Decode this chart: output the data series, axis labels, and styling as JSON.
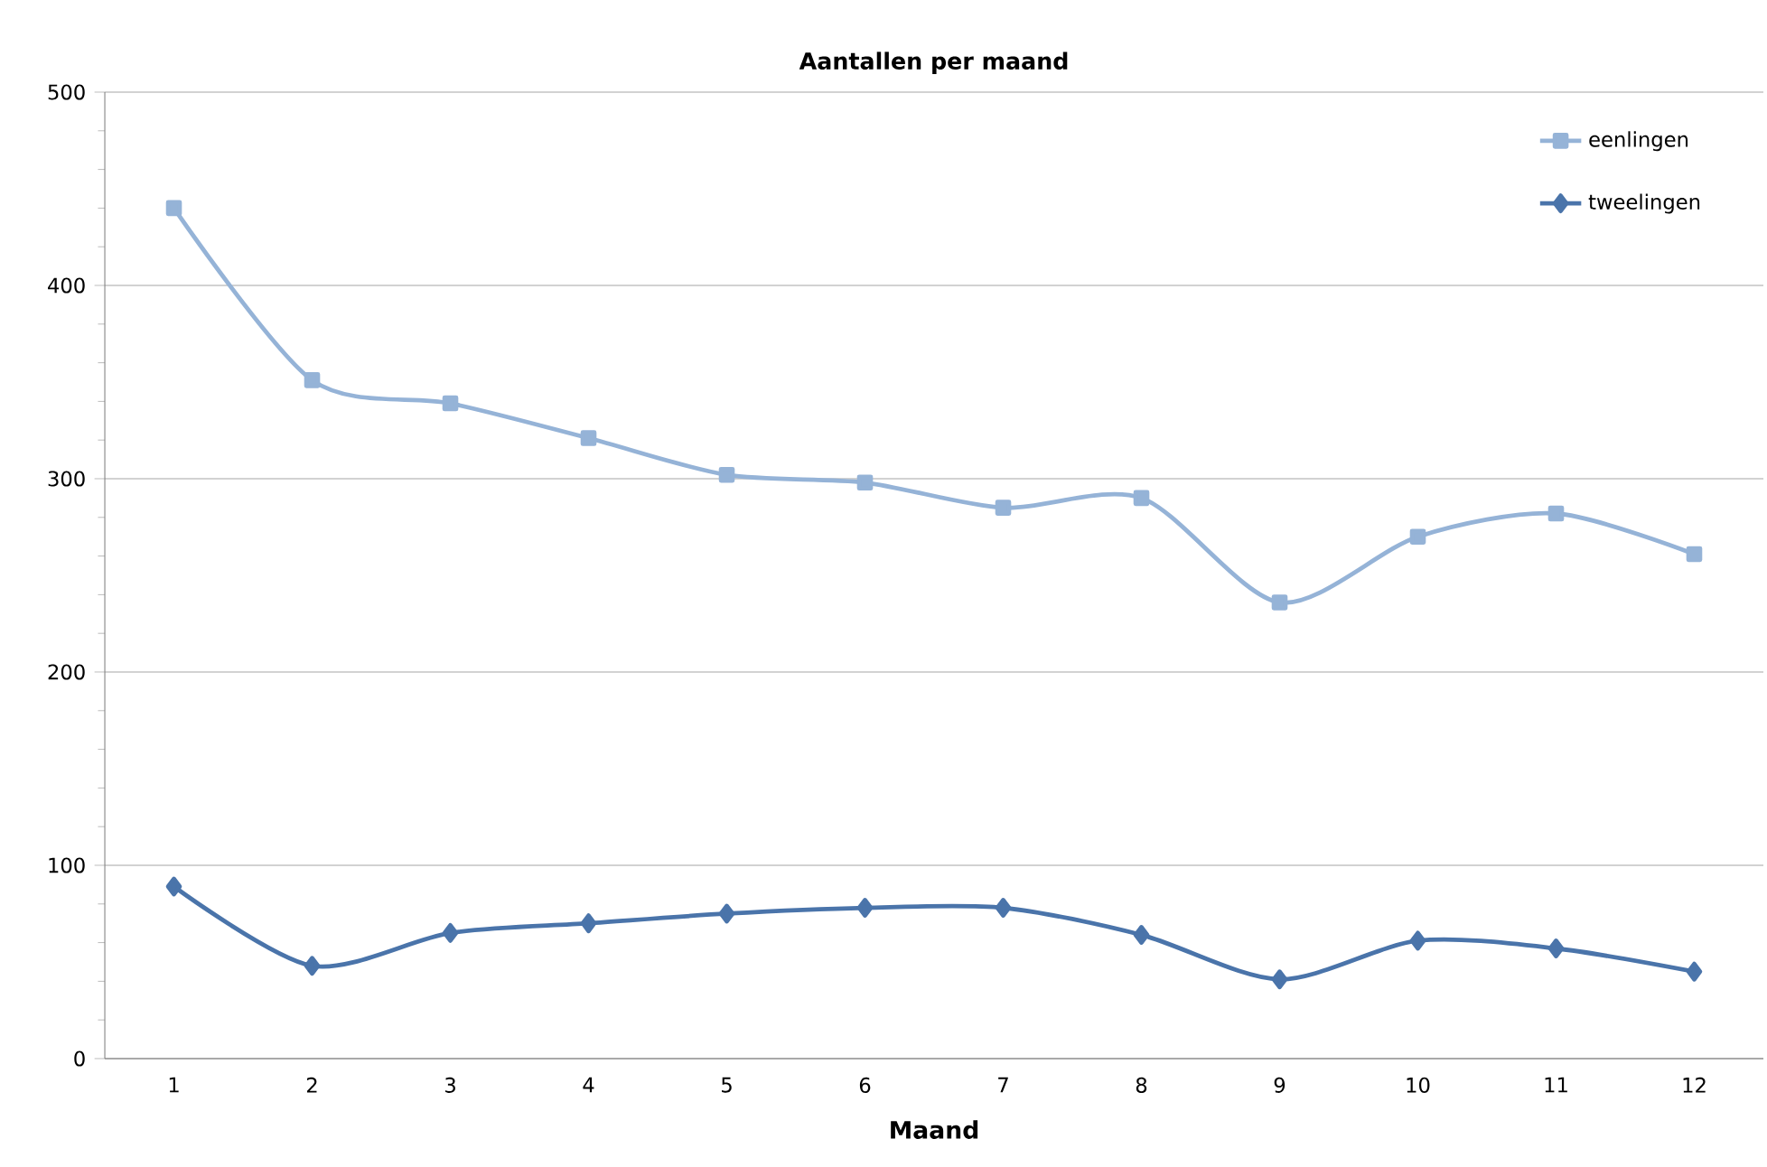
{
  "chart_data": {
    "type": "line",
    "title": "Aantallen per maand",
    "xlabel": "Maand",
    "categories": [
      "1",
      "2",
      "3",
      "4",
      "5",
      "6",
      "7",
      "8",
      "9",
      "10",
      "11",
      "12"
    ],
    "series": [
      {
        "name": "eenlingen",
        "color": "#95b3d7",
        "marker": "square",
        "values": [
          440,
          351,
          339,
          321,
          302,
          298,
          285,
          290,
          236,
          270,
          282,
          261
        ]
      },
      {
        "name": "tweelingen",
        "color": "#4a74aa",
        "marker": "diamond",
        "values": [
          89,
          48,
          65,
          70,
          75,
          78,
          78,
          64,
          41,
          61,
          57,
          45
        ]
      }
    ],
    "ylim": [
      0,
      500
    ],
    "yticks": [
      0,
      100,
      200,
      300,
      400,
      500
    ],
    "grid": "y",
    "legend": "top right",
    "line_style": "solid"
  }
}
